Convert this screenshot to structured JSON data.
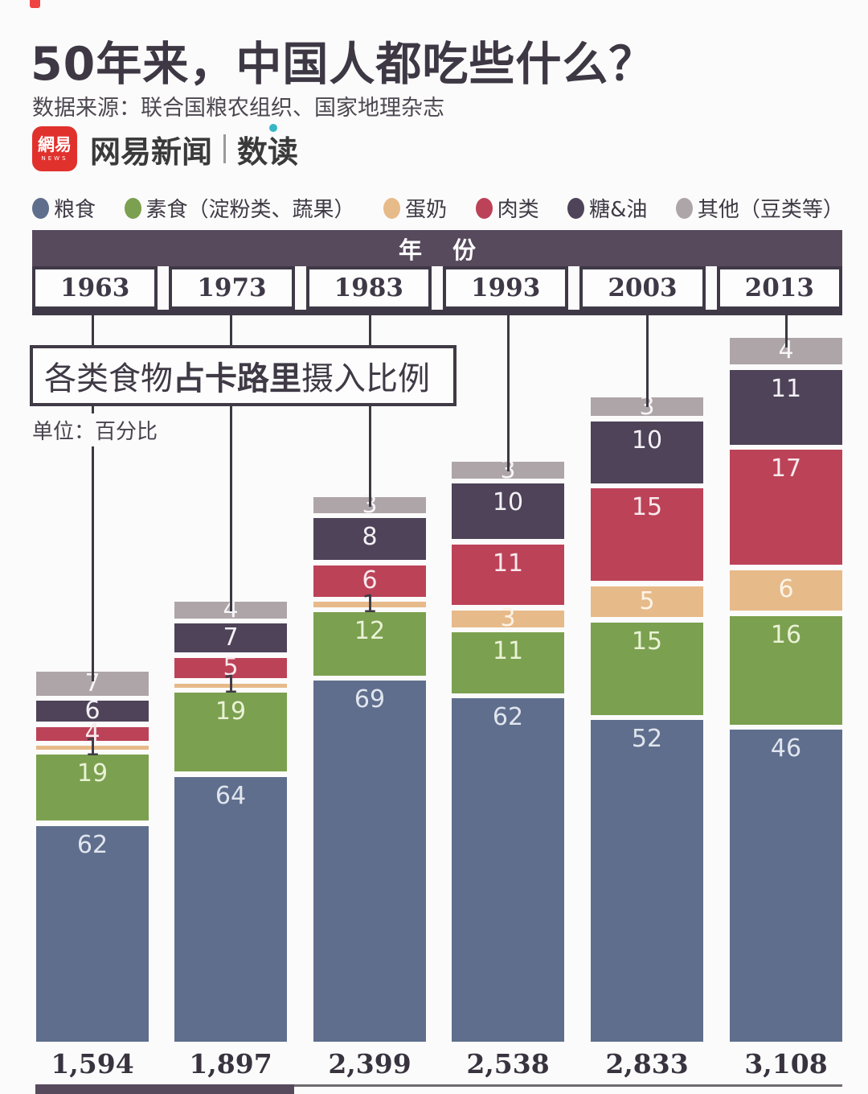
{
  "header": {
    "title": "50年来，中国人都吃些什么？",
    "source": "数据来源：联合国粮农组织、国家地理杂志",
    "logo": {
      "badge_main": "網易",
      "badge_sub": "NEWS",
      "brand": "网易新闻",
      "section": "数读"
    }
  },
  "colors": {
    "grain": "#5f6e8d",
    "vegetarian": "#7ba04f",
    "egg_dairy": "#e7ba8a",
    "meat": "#bc4258",
    "sugar_oil": "#4e4358",
    "other": "#aea5a9",
    "accent_dark": "#564a5c",
    "brand_red": "#e1312d",
    "brand_teal": "#35b6c6"
  },
  "legend": {
    "items": [
      {
        "key": "grain",
        "label": "粮食",
        "color": "#5f6e8d"
      },
      {
        "key": "vegetarian",
        "label": "素食（淀粉类、蔬果）",
        "color": "#7ba04f"
      },
      {
        "key": "egg-dairy",
        "label": "蛋奶",
        "color": "#e7ba8a"
      },
      {
        "key": "meat",
        "label": "肉类",
        "color": "#bc4258"
      },
      {
        "key": "sugar-oil",
        "label": "糖&油",
        "color": "#4e4358"
      },
      {
        "key": "other",
        "label": "其他（豆类等）",
        "color": "#aea5a9"
      }
    ]
  },
  "chart_data": {
    "type": "bar",
    "stacked": true,
    "title": "各类食物占卡路里摄入比例",
    "title_parts": {
      "p1": "各类食物",
      "p2": "占卡路里",
      "p3": "摄入比例"
    },
    "unit_label": "单位：百分比",
    "axis_header": "年 份",
    "categories": [
      "1963",
      "1973",
      "1983",
      "1993",
      "2003",
      "2013"
    ],
    "totals_kcal": [
      1594,
      1897,
      2399,
      2538,
      2833,
      3108
    ],
    "totals_display": [
      "1,594",
      "1,897",
      "2,399",
      "2,538",
      "2,833",
      "3,108"
    ],
    "bar_height_note": "bar total height proportional to total kcal; segments are percent of calories",
    "series_top_to_bottom": [
      {
        "key": "other",
        "name": "其他（豆类等）",
        "color": "#aea5a9",
        "label_color": "#f7f5f6",
        "values": [
          7,
          4,
          3,
          3,
          3,
          4
        ]
      },
      {
        "key": "sugar-oil",
        "name": "糖&油",
        "color": "#4e4358",
        "label_color": "#f3f0f5",
        "values": [
          6,
          7,
          8,
          10,
          10,
          11
        ]
      },
      {
        "key": "meat",
        "name": "肉类",
        "color": "#bc4258",
        "label_color": "#f8e9ec",
        "values": [
          4,
          5,
          6,
          11,
          15,
          17
        ]
      },
      {
        "key": "egg-dairy",
        "name": "蛋奶",
        "color": "#e7ba8a",
        "label_color": "#fdf4e6",
        "values": [
          1,
          1,
          1,
          3,
          5,
          6
        ]
      },
      {
        "key": "vegetarian",
        "name": "素食（淀粉类、蔬果）",
        "color": "#7ba04f",
        "label_color": "#e9f2d6",
        "values": [
          19,
          19,
          12,
          11,
          15,
          16
        ]
      },
      {
        "key": "grain",
        "name": "粮食",
        "color": "#5f6e8d",
        "label_color": "#e0e5ee",
        "values": [
          62,
          64,
          69,
          62,
          52,
          46
        ]
      }
    ],
    "thin_segment_label_color": "#3f3a45"
  }
}
